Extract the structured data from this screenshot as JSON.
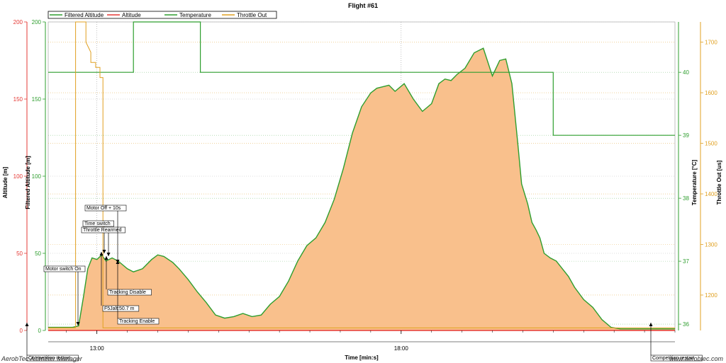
{
  "chart_data": {
    "type": "area",
    "title": "Flight #61",
    "xlabel": "Time [min:s]",
    "x_ticks": [
      "13:00",
      "18:00"
    ],
    "x_range_minutes": [
      12.2,
      22.5
    ],
    "axes": {
      "altitude": {
        "label": "Altitude [m]",
        "ylim": [
          0,
          200
        ],
        "ticks": [
          0,
          50,
          100,
          150,
          200
        ],
        "color": "#e53935"
      },
      "filtered_altitude": {
        "label": "Filtered Altitude [m]",
        "ylim": [
          0,
          200
        ],
        "ticks": [
          0,
          50,
          100,
          150,
          200
        ],
        "color": "#2e9e2e"
      },
      "temperature": {
        "label": "Temperature [°C]",
        "ylim": [
          35.9,
          40.8
        ],
        "ticks": [
          36,
          37,
          38,
          39,
          40
        ],
        "color": "#2e9e2e"
      },
      "throttle": {
        "label": "Throttle Out [us]",
        "ylim": [
          1130,
          1740
        ],
        "ticks": [
          1200,
          1300,
          1400,
          1500,
          1600,
          1700
        ],
        "color": "#e0a020"
      }
    },
    "legend": [
      "Filtered Altitude",
      "Altitude",
      "Temperature",
      "Throttle Out"
    ],
    "legend_placement": "top-left",
    "grid": true,
    "series": [
      {
        "name": "Filtered Altitude",
        "axis": "filtered_altitude",
        "color": "#2e9e2e",
        "fill": "#f9c08c",
        "x": [
          12.2,
          12.45,
          12.6,
          12.7,
          12.78,
          12.85,
          12.92,
          13.0,
          13.08,
          13.15,
          13.25,
          13.35,
          13.5,
          13.6,
          13.75,
          13.9,
          14.0,
          14.1,
          14.25,
          14.35,
          14.5,
          14.65,
          14.8,
          14.95,
          15.1,
          15.25,
          15.4,
          15.55,
          15.7,
          15.85,
          16.0,
          16.15,
          16.3,
          16.45,
          16.6,
          16.75,
          16.9,
          17.05,
          17.2,
          17.35,
          17.5,
          17.6,
          17.7,
          17.8,
          17.9,
          18.05,
          18.2,
          18.35,
          18.5,
          18.62,
          18.72,
          18.82,
          18.92,
          19.05,
          19.2,
          19.35,
          19.5,
          19.62,
          19.72,
          19.82,
          19.92,
          19.98,
          20.08,
          20.15,
          20.22,
          20.28,
          20.35,
          20.45,
          20.55,
          20.65,
          20.75,
          20.85,
          21.0,
          21.15,
          21.3,
          21.45,
          21.6,
          21.75,
          21.9,
          22.0,
          22.05,
          22.1,
          22.2,
          22.3,
          22.5
        ],
        "values": [
          2,
          2,
          2,
          3,
          22,
          40,
          47,
          46,
          49,
          45,
          47,
          45,
          40,
          38,
          40,
          46,
          49,
          48,
          44,
          40,
          33,
          25,
          18,
          10,
          8,
          9,
          11,
          9,
          10,
          17,
          22,
          32,
          45,
          55,
          60,
          70,
          85,
          105,
          128,
          145,
          154,
          157,
          158,
          159,
          155,
          160,
          150,
          142,
          147,
          160,
          163,
          162,
          166,
          170,
          180,
          183,
          165,
          175,
          176,
          160,
          120,
          95,
          82,
          70,
          65,
          60,
          50,
          47,
          45,
          40,
          35,
          28,
          20,
          15,
          7,
          2,
          1,
          1,
          1,
          1,
          1,
          1,
          1,
          1,
          1
        ]
      },
      {
        "name": "Altitude",
        "axis": "altitude",
        "color": "#e53935",
        "x": [
          12.2,
          22.5
        ],
        "values": [
          0,
          0
        ]
      },
      {
        "name": "Temperature",
        "axis": "temperature",
        "color": "#2e9e2e",
        "x": [
          12.2,
          13.4,
          13.6,
          13.6,
          14.7,
          14.7,
          14.9,
          15.5,
          16.0,
          19.1,
          19.1,
          20.5,
          20.5,
          22.5
        ],
        "values": [
          40.0,
          40.0,
          40.0,
          40.85,
          40.85,
          40.0,
          40.0,
          40.0,
          40.0,
          40.0,
          40.0,
          40.0,
          39.0,
          39.0
        ]
      },
      {
        "name": "Throttle Out",
        "axis": "throttle",
        "color": "#e0a020",
        "x": [
          12.2,
          12.65,
          12.65,
          12.7,
          12.7,
          12.82,
          12.82,
          12.9,
          12.9,
          12.98,
          12.98,
          13.05,
          13.05,
          13.1,
          13.1,
          22.5
        ],
        "values": [
          1135,
          1135,
          1740,
          1740,
          1740,
          1740,
          1700,
          1680,
          1660,
          1660,
          1650,
          1650,
          1630,
          1630,
          1135,
          1135
        ]
      }
    ],
    "annotations": [
      {
        "label": "Motor switch On",
        "x": 12.68
      },
      {
        "label": "Tracking Disable",
        "x": 13.02
      },
      {
        "label": "Time switch",
        "x": 13.0
      },
      {
        "label": "Throttle Rearmed",
        "x": 13.05
      },
      {
        "label": "Motor Off + 10s",
        "x": 13.2
      },
      {
        "label": "F5Jalt:50.7 m",
        "x": 12.98
      },
      {
        "label": "Tracking Enable",
        "x": 13.2
      },
      {
        "label": "Competition restart",
        "x": 12.22
      },
      {
        "label": "Competition restart",
        "x": 22.2
      }
    ]
  },
  "watermark_left": "AerobTec Altimeter Manager",
  "watermark_right": "www.aerobtec.com"
}
